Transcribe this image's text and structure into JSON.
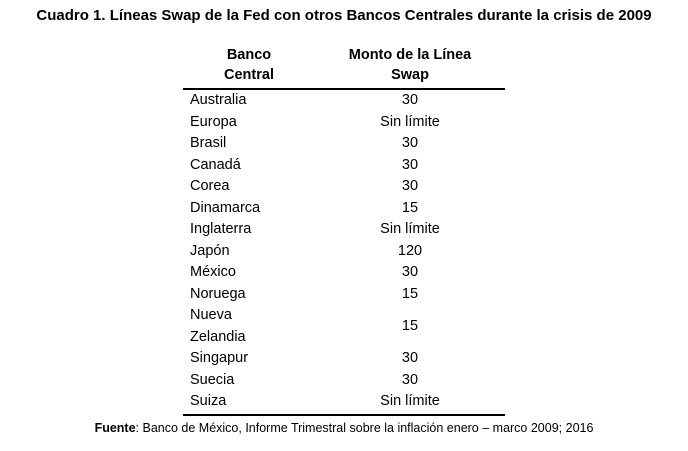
{
  "title": "Cuadro 1. Líneas Swap de la Fed con otros Bancos Centrales durante la crisis de 2009",
  "table": {
    "headers": {
      "banco": "Banco\nCentral",
      "monto": "Monto de la Línea\nSwap"
    },
    "rows": [
      {
        "banco": "Australia",
        "monto": "30"
      },
      {
        "banco": "Europa",
        "monto": "Sin límite"
      },
      {
        "banco": "Brasil",
        "monto": "30"
      },
      {
        "banco": "Canadá",
        "monto": "30"
      },
      {
        "banco": "Corea",
        "monto": "30"
      },
      {
        "banco": "Dinamarca",
        "monto": "15"
      },
      {
        "banco": "Inglaterra",
        "monto": "Sin límite"
      },
      {
        "banco": "Japón",
        "monto": "120"
      },
      {
        "banco": "México",
        "monto": "30"
      },
      {
        "banco": "Noruega",
        "monto": "15"
      },
      {
        "banco": "Nueva\nZelandia",
        "monto": "15"
      },
      {
        "banco": "Singapur",
        "monto": "30"
      },
      {
        "banco": "Suecia",
        "monto": "30"
      },
      {
        "banco": "Suiza",
        "monto": "Sin límite"
      }
    ]
  },
  "footer": {
    "label": "Fuente",
    "text": ": Banco de México, Informe Trimestral sobre la inflación enero – marco 2009; 2016"
  },
  "colors": {
    "text": "#000000",
    "background": "#ffffff",
    "rule": "#000000"
  }
}
